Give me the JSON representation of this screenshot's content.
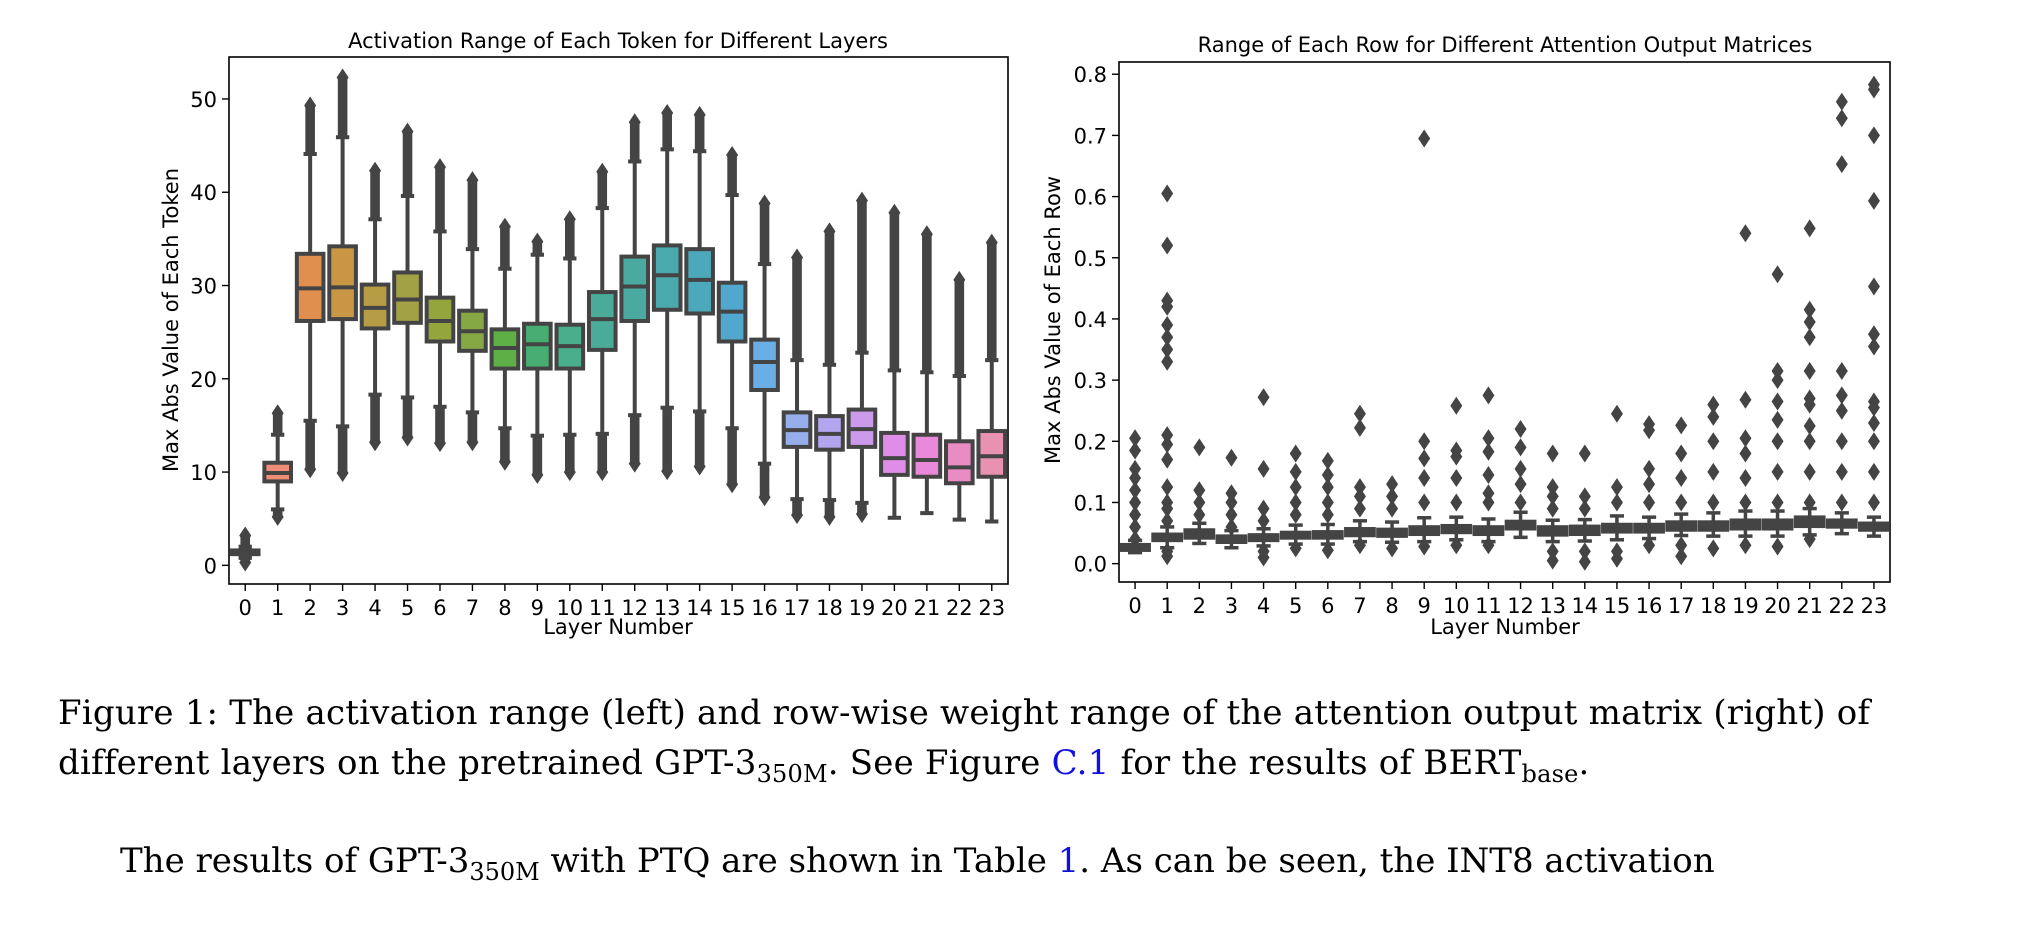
{
  "chart_data": [
    {
      "type": "box",
      "title": "Activation Range of Each Token for Different Layers",
      "xlabel": "Layer Number",
      "ylabel": "Max Abs Value of Each Token",
      "ylim": [
        -2,
        54.5
      ],
      "yticks": [
        0,
        10,
        20,
        30,
        40,
        50
      ],
      "categories": [
        "0",
        "1",
        "2",
        "3",
        "4",
        "5",
        "6",
        "7",
        "8",
        "9",
        "10",
        "11",
        "12",
        "13",
        "14",
        "15",
        "16",
        "17",
        "18",
        "19",
        "20",
        "21",
        "22",
        "23"
      ],
      "grid": false,
      "legend": "none",
      "boxes": [
        {
          "layer": "0",
          "q1": 1.2,
          "median": 1.4,
          "q3": 1.6,
          "whisker_low": 0.8,
          "whisker_high": 2.0,
          "flier_low": 0.3,
          "flier_high": 3.2,
          "color": "#f77189"
        },
        {
          "layer": "1",
          "q1": 9.0,
          "median": 9.9,
          "q3": 11.0,
          "whisker_low": 6.0,
          "whisker_high": 14.0,
          "flier_low": 5.2,
          "flier_high": 16.3,
          "color": "#f08d77"
        },
        {
          "layer": "2",
          "q1": 26.2,
          "median": 29.7,
          "q3": 33.4,
          "whisker_low": 15.5,
          "whisker_high": 44.1,
          "flier_low": 10.3,
          "flier_high": 49.3,
          "color": "#e08f4f"
        },
        {
          "layer": "3",
          "q1": 26.4,
          "median": 29.8,
          "q3": 34.2,
          "whisker_low": 14.9,
          "whisker_high": 45.9,
          "flier_low": 9.9,
          "flier_high": 52.3,
          "color": "#c99645"
        },
        {
          "layer": "4",
          "q1": 25.4,
          "median": 27.6,
          "q3": 30.1,
          "whisker_low": 18.3,
          "whisker_high": 37.1,
          "flier_low": 13.2,
          "flier_high": 42.3,
          "color": "#b69c45"
        },
        {
          "layer": "5",
          "q1": 26.0,
          "median": 28.5,
          "q3": 31.4,
          "whisker_low": 18.0,
          "whisker_high": 39.6,
          "flier_low": 13.7,
          "flier_high": 46.5,
          "color": "#a3a146"
        },
        {
          "layer": "6",
          "q1": 24.0,
          "median": 26.2,
          "q3": 28.7,
          "whisker_low": 17.0,
          "whisker_high": 35.8,
          "flier_low": 13.1,
          "flier_high": 42.7,
          "color": "#95a53e"
        },
        {
          "layer": "7",
          "q1": 23.0,
          "median": 25.1,
          "q3": 27.3,
          "whisker_low": 16.4,
          "whisker_high": 33.9,
          "flier_low": 13.2,
          "flier_high": 41.3,
          "color": "#86a844"
        },
        {
          "layer": "8",
          "q1": 21.1,
          "median": 23.3,
          "q3": 25.3,
          "whisker_low": 14.7,
          "whisker_high": 31.8,
          "flier_low": 11.1,
          "flier_high": 36.3,
          "color": "#5eaf46"
        },
        {
          "layer": "9",
          "q1": 21.1,
          "median": 23.7,
          "q3": 25.9,
          "whisker_low": 13.9,
          "whisker_high": 33.3,
          "flier_low": 9.7,
          "flier_high": 34.7,
          "color": "#47ad73"
        },
        {
          "layer": "10",
          "q1": 21.1,
          "median": 23.5,
          "q3": 25.8,
          "whisker_low": 14.0,
          "whisker_high": 32.9,
          "flier_low": 10.0,
          "flier_high": 37.1,
          "color": "#49ae8c"
        },
        {
          "layer": "11",
          "q1": 23.1,
          "median": 26.4,
          "q3": 29.3,
          "whisker_low": 14.1,
          "whisker_high": 38.3,
          "flier_low": 10.0,
          "flier_high": 42.2,
          "color": "#4aab99"
        },
        {
          "layer": "12",
          "q1": 26.2,
          "median": 29.9,
          "q3": 33.1,
          "whisker_low": 16.1,
          "whisker_high": 43.3,
          "flier_low": 10.9,
          "flier_high": 47.5,
          "color": "#4aaaa2"
        },
        {
          "layer": "13",
          "q1": 27.4,
          "median": 31.1,
          "q3": 34.3,
          "whisker_low": 16.9,
          "whisker_high": 44.6,
          "flier_low": 10.1,
          "flier_high": 48.5,
          "color": "#4aa9ac"
        },
        {
          "layer": "14",
          "q1": 27.0,
          "median": 30.6,
          "q3": 33.9,
          "whisker_low": 16.5,
          "whisker_high": 44.4,
          "flier_low": 10.6,
          "flier_high": 48.3,
          "color": "#4ca9bb"
        },
        {
          "layer": "15",
          "q1": 24.0,
          "median": 27.2,
          "q3": 30.3,
          "whisker_low": 14.7,
          "whisker_high": 39.7,
          "flier_low": 8.7,
          "flier_high": 44.0,
          "color": "#51a8cf"
        },
        {
          "layer": "16",
          "q1": 18.8,
          "median": 21.8,
          "q3": 24.2,
          "whisker_low": 10.9,
          "whisker_high": 32.3,
          "flier_low": 7.3,
          "flier_high": 38.8,
          "color": "#69aee6"
        },
        {
          "layer": "17",
          "q1": 12.7,
          "median": 14.5,
          "q3": 16.4,
          "whisker_low": 7.1,
          "whisker_high": 22.0,
          "flier_low": 5.4,
          "flier_high": 33.0,
          "color": "#96aeeb"
        },
        {
          "layer": "18",
          "q1": 12.4,
          "median": 14.1,
          "q3": 16.0,
          "whisker_low": 7.0,
          "whisker_high": 21.5,
          "flier_low": 5.2,
          "flier_high": 35.8,
          "color": "#b4a5ef"
        },
        {
          "layer": "19",
          "q1": 12.7,
          "median": 14.6,
          "q3": 16.7,
          "whisker_low": 6.7,
          "whisker_high": 22.8,
          "flier_low": 5.5,
          "flier_high": 39.1,
          "color": "#cc9aea"
        },
        {
          "layer": "20",
          "q1": 9.7,
          "median": 11.5,
          "q3": 14.2,
          "whisker_low": 5.1,
          "whisker_high": 20.9,
          "flier_low": null,
          "flier_high": 37.8,
          "color": "#df8ee7"
        },
        {
          "layer": "21",
          "q1": 9.5,
          "median": 11.3,
          "q3": 14.0,
          "whisker_low": 5.6,
          "whisker_high": 20.7,
          "flier_low": null,
          "flier_high": 35.5,
          "color": "#ea89d9"
        },
        {
          "layer": "22",
          "q1": 8.8,
          "median": 10.5,
          "q3": 13.3,
          "whisker_low": 4.9,
          "whisker_high": 20.3,
          "flier_low": null,
          "flier_high": 30.6,
          "color": "#e98cc4"
        },
        {
          "layer": "23",
          "q1": 9.5,
          "median": 11.7,
          "q3": 14.4,
          "whisker_low": 4.7,
          "whisker_high": 22.0,
          "flier_low": null,
          "flier_high": 34.6,
          "color": "#e891b1"
        }
      ]
    },
    {
      "type": "box",
      "title": "Range of Each Row for Different Attention Output Matrices",
      "xlabel": "Layer Number",
      "ylabel": "Max Abs Value of Each Row",
      "ylim": [
        -0.03,
        0.82
      ],
      "yticks": [
        "0.0",
        "0.1",
        "0.2",
        "0.3",
        "0.4",
        "0.5",
        "0.6",
        "0.7",
        "0.8"
      ],
      "categories": [
        "0",
        "1",
        "2",
        "3",
        "4",
        "5",
        "6",
        "7",
        "8",
        "9",
        "10",
        "11",
        "12",
        "13",
        "14",
        "15",
        "16",
        "17",
        "18",
        "19",
        "20",
        "21",
        "22",
        "23"
      ],
      "grid": false,
      "legend": "none",
      "box_color": "#444444",
      "boxes": [
        {
          "layer": "0",
          "q1": 0.022,
          "median": 0.026,
          "q3": 0.031,
          "whisker_low": 0.018,
          "whisker_high": 0.038,
          "fliers": [
            0.04,
            0.06,
            0.08,
            0.1,
            0.12,
            0.14,
            0.155,
            0.185,
            0.205
          ]
        },
        {
          "layer": "1",
          "q1": 0.038,
          "median": 0.043,
          "q3": 0.048,
          "whisker_low": 0.026,
          "whisker_high": 0.06,
          "fliers": [
            0.012,
            0.02,
            0.07,
            0.09,
            0.1,
            0.125,
            0.17,
            0.195,
            0.21,
            0.33,
            0.35,
            0.37,
            0.39,
            0.42,
            0.43,
            0.52,
            0.605
          ]
        },
        {
          "layer": "2",
          "q1": 0.042,
          "median": 0.048,
          "q3": 0.055,
          "whisker_low": 0.033,
          "whisker_high": 0.066,
          "fliers": [
            0.08,
            0.1,
            0.12,
            0.19
          ]
        },
        {
          "layer": "3",
          "q1": 0.035,
          "median": 0.04,
          "q3": 0.045,
          "whisker_low": 0.026,
          "whisker_high": 0.054,
          "fliers": [
            0.06,
            0.08,
            0.1,
            0.115,
            0.173
          ]
        },
        {
          "layer": "4",
          "q1": 0.038,
          "median": 0.043,
          "q3": 0.047,
          "whisker_low": 0.029,
          "whisker_high": 0.057,
          "fliers": [
            0.01,
            0.02,
            0.07,
            0.09,
            0.155,
            0.272
          ]
        },
        {
          "layer": "5",
          "q1": 0.042,
          "median": 0.047,
          "q3": 0.051,
          "whisker_low": 0.032,
          "whisker_high": 0.063,
          "fliers": [
            0.025,
            0.08,
            0.1,
            0.125,
            0.15,
            0.18
          ]
        },
        {
          "layer": "6",
          "q1": 0.042,
          "median": 0.048,
          "q3": 0.052,
          "whisker_low": 0.032,
          "whisker_high": 0.064,
          "fliers": [
            0.022,
            0.08,
            0.1,
            0.125,
            0.145,
            0.168
          ]
        },
        {
          "layer": "7",
          "q1": 0.046,
          "median": 0.052,
          "q3": 0.057,
          "whisker_low": 0.036,
          "whisker_high": 0.07,
          "fliers": [
            0.03,
            0.09,
            0.11,
            0.125,
            0.222,
            0.245
          ]
        },
        {
          "layer": "8",
          "q1": 0.045,
          "median": 0.051,
          "q3": 0.056,
          "whisker_low": 0.035,
          "whisker_high": 0.068,
          "fliers": [
            0.025,
            0.09,
            0.11,
            0.13
          ]
        },
        {
          "layer": "9",
          "q1": 0.048,
          "median": 0.055,
          "q3": 0.06,
          "whisker_low": 0.036,
          "whisker_high": 0.075,
          "fliers": [
            0.028,
            0.1,
            0.14,
            0.172,
            0.2,
            0.695
          ]
        },
        {
          "layer": "10",
          "q1": 0.051,
          "median": 0.057,
          "q3": 0.062,
          "whisker_low": 0.039,
          "whisker_high": 0.076,
          "fliers": [
            0.03,
            0.1,
            0.14,
            0.175,
            0.185,
            0.258
          ]
        },
        {
          "layer": "11",
          "q1": 0.048,
          "median": 0.054,
          "q3": 0.06,
          "whisker_low": 0.036,
          "whisker_high": 0.073,
          "fliers": [
            0.03,
            0.1,
            0.115,
            0.145,
            0.183,
            0.205,
            0.275
          ]
        },
        {
          "layer": "12",
          "q1": 0.057,
          "median": 0.064,
          "q3": 0.069,
          "whisker_low": 0.043,
          "whisker_high": 0.084,
          "fliers": [
            0.1,
            0.13,
            0.155,
            0.19,
            0.22
          ]
        },
        {
          "layer": "13",
          "q1": 0.047,
          "median": 0.054,
          "q3": 0.06,
          "whisker_low": 0.036,
          "whisker_high": 0.071,
          "fliers": [
            0.005,
            0.02,
            0.09,
            0.11,
            0.125,
            0.18
          ]
        },
        {
          "layer": "14",
          "q1": 0.048,
          "median": 0.055,
          "q3": 0.061,
          "whisker_low": 0.037,
          "whisker_high": 0.072,
          "fliers": [
            0.003,
            0.02,
            0.09,
            0.11,
            0.18
          ]
        },
        {
          "layer": "15",
          "q1": 0.052,
          "median": 0.058,
          "q3": 0.064,
          "whisker_low": 0.039,
          "whisker_high": 0.078,
          "fliers": [
            0.008,
            0.02,
            0.1,
            0.125,
            0.245
          ]
        },
        {
          "layer": "16",
          "q1": 0.052,
          "median": 0.058,
          "q3": 0.064,
          "whisker_low": 0.041,
          "whisker_high": 0.076,
          "fliers": [
            0.03,
            0.1,
            0.13,
            0.155,
            0.218,
            0.228
          ]
        },
        {
          "layer": "17",
          "q1": 0.055,
          "median": 0.062,
          "q3": 0.068,
          "whisker_low": 0.046,
          "whisker_high": 0.081,
          "fliers": [
            0.012,
            0.03,
            0.1,
            0.14,
            0.18,
            0.226
          ]
        },
        {
          "layer": "18",
          "q1": 0.055,
          "median": 0.062,
          "q3": 0.068,
          "whisker_low": 0.045,
          "whisker_high": 0.083,
          "fliers": [
            0.025,
            0.1,
            0.15,
            0.2,
            0.24,
            0.26
          ]
        },
        {
          "layer": "19",
          "q1": 0.057,
          "median": 0.064,
          "q3": 0.071,
          "whisker_low": 0.045,
          "whisker_high": 0.086,
          "fliers": [
            0.03,
            0.1,
            0.14,
            0.18,
            0.205,
            0.268,
            0.54
          ]
        },
        {
          "layer": "20",
          "q1": 0.057,
          "median": 0.064,
          "q3": 0.071,
          "whisker_low": 0.045,
          "whisker_high": 0.086,
          "fliers": [
            0.028,
            0.1,
            0.15,
            0.2,
            0.235,
            0.265,
            0.3,
            0.315,
            0.473
          ]
        },
        {
          "layer": "21",
          "q1": 0.061,
          "median": 0.068,
          "q3": 0.076,
          "whisker_low": 0.047,
          "whisker_high": 0.09,
          "fliers": [
            0.04,
            0.1,
            0.15,
            0.2,
            0.225,
            0.26,
            0.27,
            0.315,
            0.37,
            0.395,
            0.415,
            0.548
          ]
        },
        {
          "layer": "22",
          "q1": 0.06,
          "median": 0.066,
          "q3": 0.071,
          "whisker_low": 0.049,
          "whisker_high": 0.083,
          "fliers": [
            0.1,
            0.15,
            0.2,
            0.25,
            0.275,
            0.315,
            0.653,
            0.728,
            0.755
          ]
        },
        {
          "layer": "23",
          "q1": 0.055,
          "median": 0.06,
          "q3": 0.066,
          "whisker_low": 0.045,
          "whisker_high": 0.076,
          "fliers": [
            0.1,
            0.15,
            0.2,
            0.23,
            0.255,
            0.265,
            0.355,
            0.375,
            0.453,
            0.593,
            0.7,
            0.775,
            0.783
          ]
        }
      ]
    }
  ],
  "caption": {
    "line1": "Figure 1: The activation range (left) and row-wise weight range of the attention output matrix (right) of",
    "line2_pre": "different layers on the pretrained GPT-3",
    "line2_sub1": "350M",
    "line2_mid": ". See Figure ",
    "line2_ref": "C.1",
    "line2_post": " for the results of BERT",
    "line2_sub2": "base",
    "line2_end": "."
  },
  "paragraph": {
    "pre": "The results of GPT-3",
    "sub": "350M",
    "mid": " with PTQ are shown in Table ",
    "ref": "1",
    "post": ".  As can be seen, the INT8 activation"
  },
  "colors": {
    "link": "#1010e0",
    "box_edge": "#444444",
    "axis": "#000000"
  }
}
